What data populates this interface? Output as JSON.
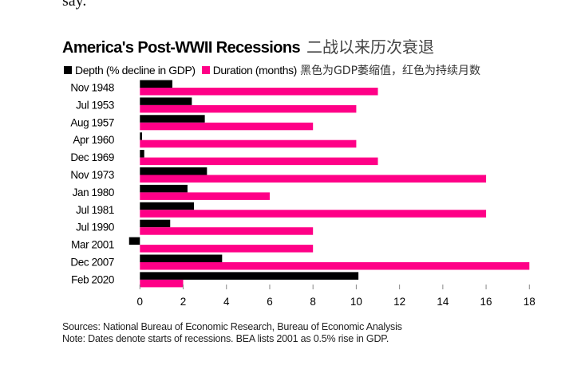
{
  "page": {
    "lead_text": "say."
  },
  "chart_data": {
    "type": "bar",
    "orientation": "horizontal",
    "title": "America's Post-WWII Recessions",
    "title_zh": "二战以来历次衰退",
    "categories": [
      "Nov 1948",
      "Jul 1953",
      "Aug 1957",
      "Apr 1960",
      "Dec 1969",
      "Nov 1973",
      "Jan 1980",
      "Jul 1981",
      "Jul 1990",
      "Mar 2001",
      "Dec 2007",
      "Feb 2020"
    ],
    "series": [
      {
        "name": "Depth (% decline in GDP)",
        "color": "#000000",
        "values": [
          1.5,
          2.4,
          3.0,
          0.1,
          0.2,
          3.1,
          2.2,
          2.5,
          1.4,
          -0.5,
          3.8,
          10.1
        ]
      },
      {
        "name": "Duration (months)",
        "color": "#ff0087",
        "values": [
          11,
          10,
          8,
          10,
          11,
          16,
          6,
          16,
          8,
          8,
          18,
          2
        ]
      }
    ],
    "legend_note_zh": "黑色为GDP萎缩值，红色为持续月数",
    "xlim": [
      0,
      18
    ],
    "xticks": [
      "0",
      "2",
      "4",
      "6",
      "8",
      "10",
      "12",
      "14",
      "16",
      "18"
    ],
    "xlabel": "",
    "ylabel": "",
    "grid": false,
    "legend_position": "top-left"
  },
  "footer": {
    "sources": "Sources: National Bureau of Economic Research, Bureau of Economic Analysis",
    "note": "Note: Dates denote starts of recessions. BEA lists 2001 as 0.5% rise in GDP."
  }
}
